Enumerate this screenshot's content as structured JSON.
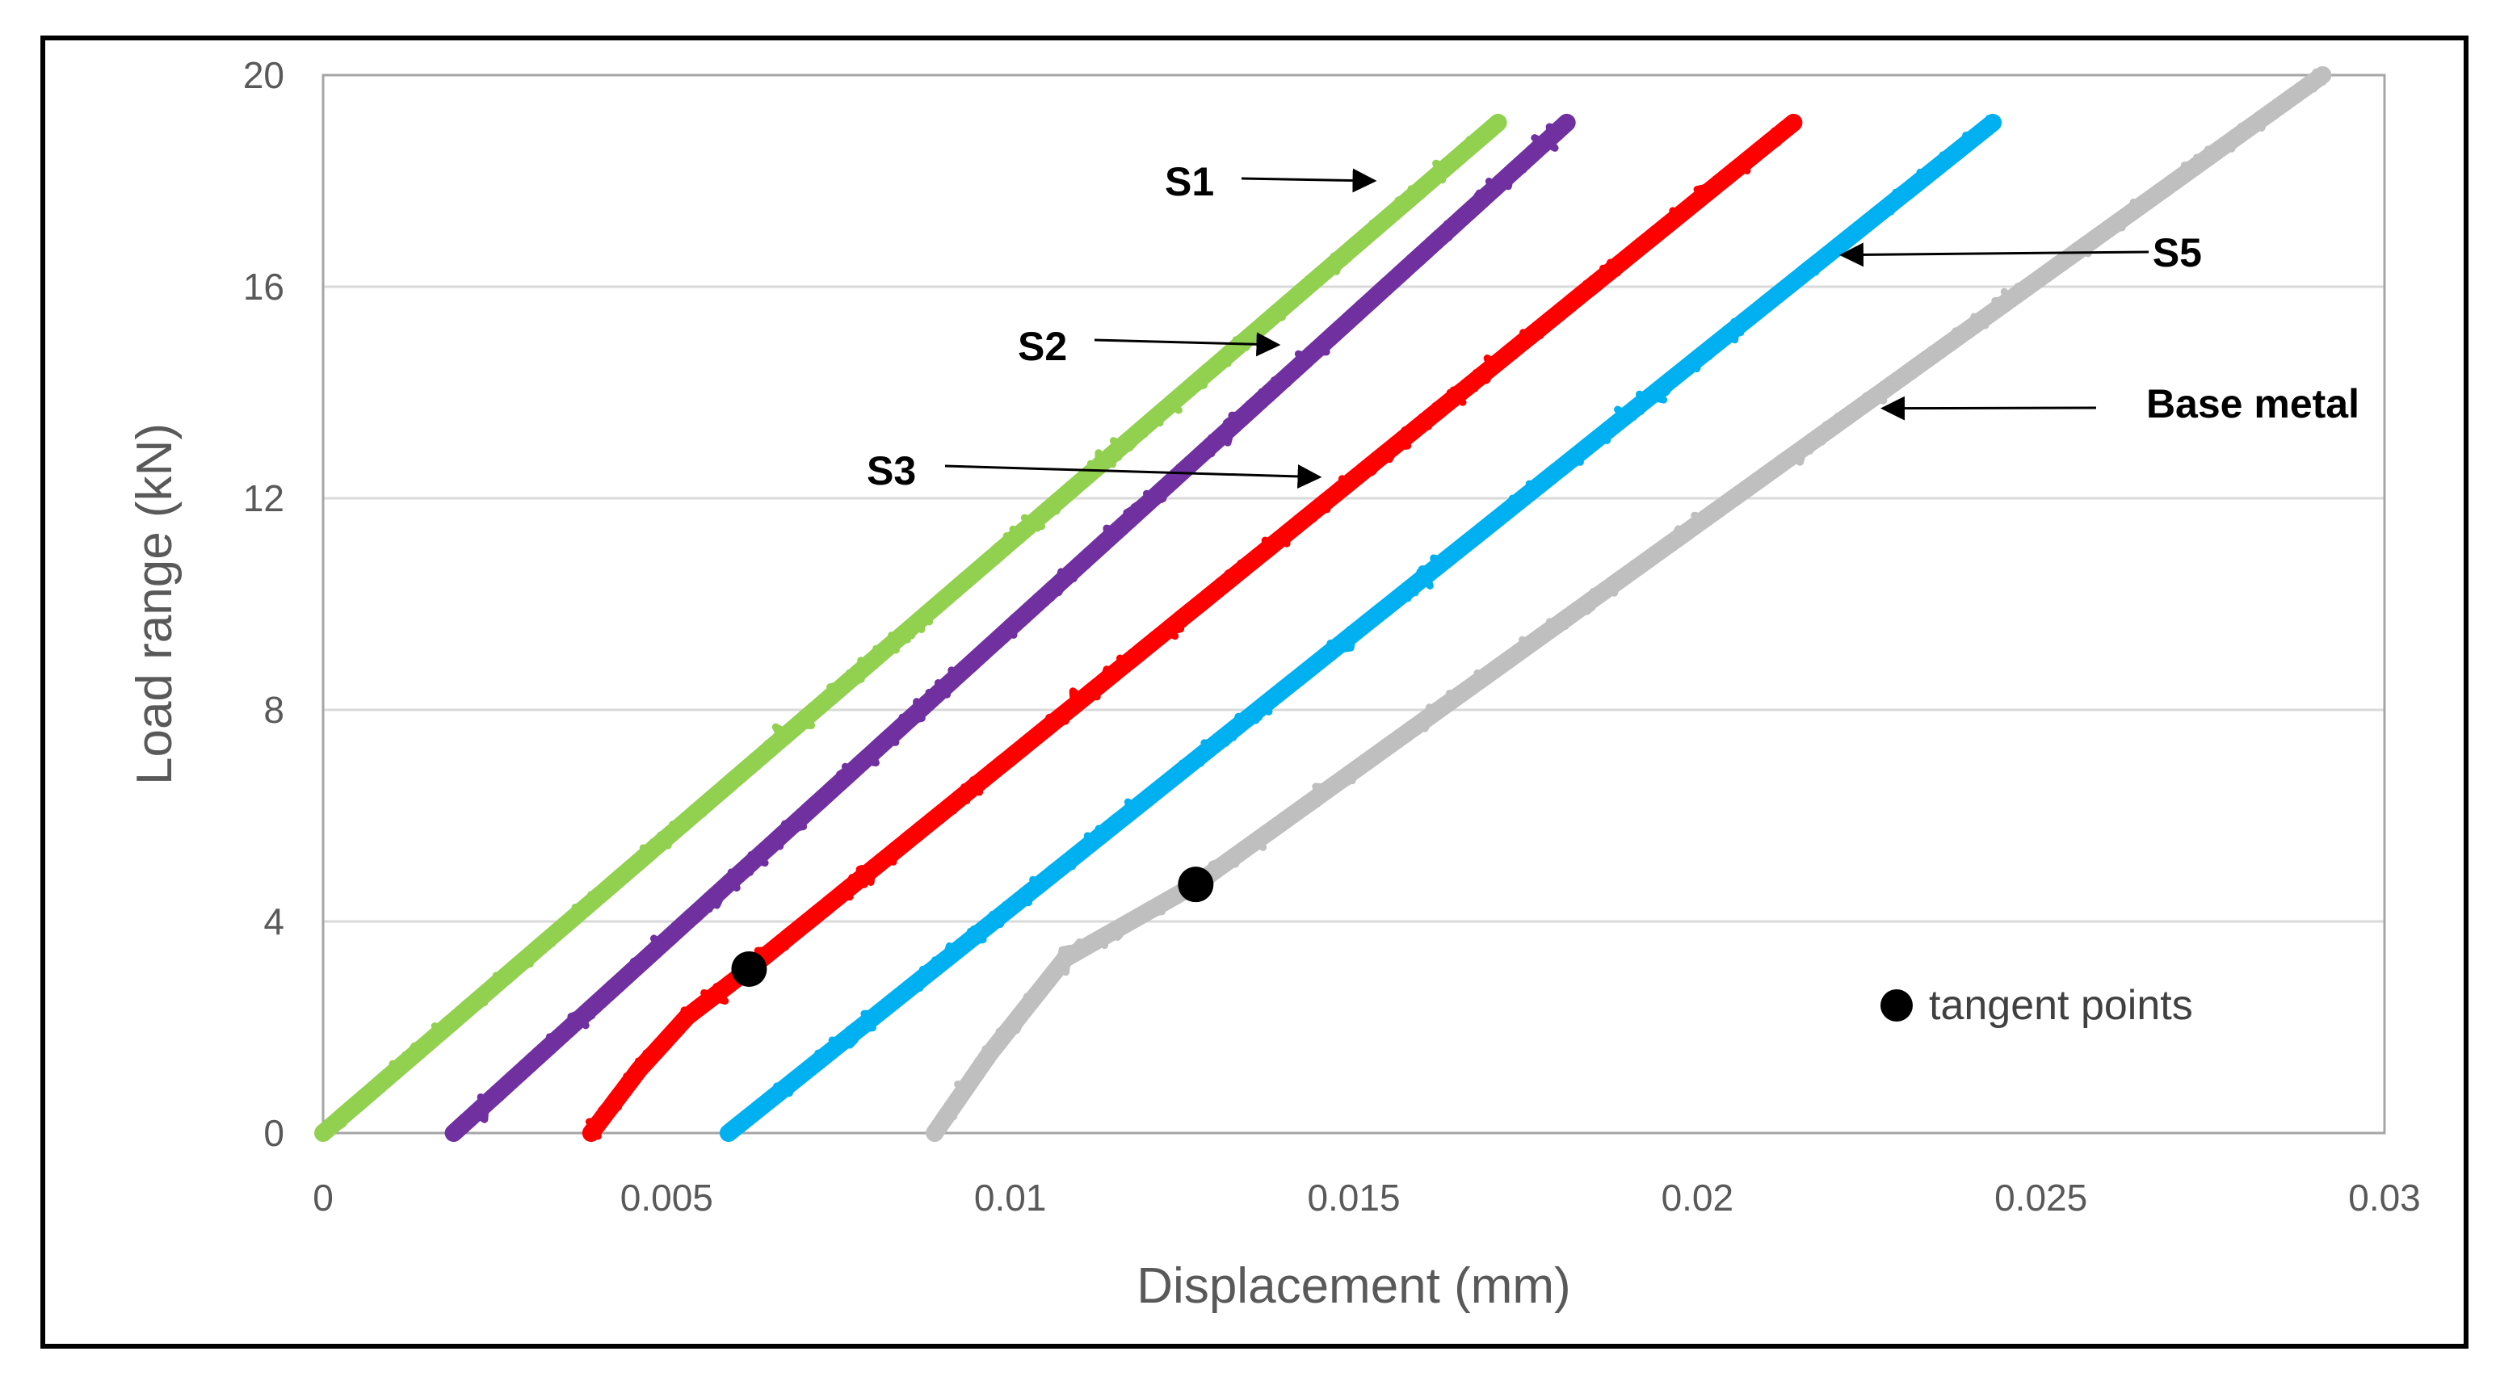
{
  "chart_data": {
    "type": "scatter",
    "xlabel": "Displacement (mm)",
    "ylabel": "Load range (kN)",
    "xlim": [
      0,
      0.03
    ],
    "ylim": [
      0,
      20
    ],
    "x_ticks": [
      "0",
      "0.005",
      "0.01",
      "0.015",
      "0.02",
      "0.025",
      "0.03"
    ],
    "y_ticks": [
      "0",
      "4",
      "8",
      "12",
      "16",
      "20"
    ],
    "grid": "horizontal",
    "series": [
      {
        "color": "#92d050",
        "points": [
          [
            0.0,
            0.0
          ],
          [
            0.0171,
            19.1
          ]
        ]
      },
      {
        "color": "#7030a0",
        "points": [
          [
            0.0019,
            0.0
          ],
          [
            0.0181,
            19.1
          ]
        ]
      },
      {
        "color": "#ff0000",
        "points": [
          [
            0.0039,
            0.0
          ],
          [
            0.0046,
            1.2
          ],
          [
            0.0053,
            2.2
          ],
          [
            0.0062,
            3.1
          ],
          [
            0.0214,
            19.1
          ]
        ]
      },
      {
        "color": "#00b0f0",
        "points": [
          [
            0.0059,
            0.0
          ],
          [
            0.0243,
            19.1
          ]
        ]
      },
      {
        "color": "#bfbfbf",
        "points": [
          [
            0.0089,
            0.0
          ],
          [
            0.0097,
            1.5
          ],
          [
            0.0108,
            3.3
          ],
          [
            0.0127,
            4.7
          ],
          [
            0.0291,
            20.0
          ]
        ]
      }
    ],
    "annotations": [
      {
        "text": "S1",
        "arrow_to": [
          0.0153,
          18.0
        ]
      },
      {
        "text": "S2",
        "arrow_to": [
          0.0139,
          14.9
        ]
      },
      {
        "text": "S3",
        "arrow_to": [
          0.0145,
          12.4
        ]
      },
      {
        "text": "S5",
        "arrow_to": [
          0.0221,
          16.6
        ]
      },
      {
        "text": "Base metal",
        "arrow_to": [
          0.0227,
          13.7
        ]
      }
    ],
    "markers": [
      {
        "series_index": 2,
        "x": 0.0062,
        "y": 3.1
      },
      {
        "series_index": 4,
        "x": 0.0127,
        "y": 4.7
      }
    ],
    "legend": {
      "label": "tangent points",
      "position": "bottom-right"
    }
  }
}
